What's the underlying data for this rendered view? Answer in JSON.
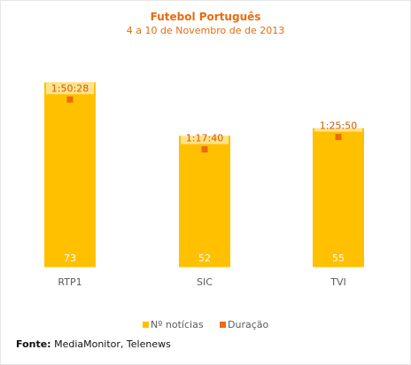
{
  "chart_data": {
    "type": "bar",
    "title": "Futebol Português",
    "subtitle": "4 a 10 de Novembro de de 2013",
    "categories": [
      "RTP1",
      "SIC",
      "TVI"
    ],
    "series": [
      {
        "name": "Nº notícias",
        "values": [
          73,
          52,
          55
        ],
        "labels": [
          "73",
          "52",
          "55"
        ],
        "color": "#ffc000"
      },
      {
        "name": "Duração",
        "values": [
          6628,
          4660,
          5150
        ],
        "labels": [
          "1:50:28",
          "1:17:40",
          "1:25:50"
        ],
        "color": "#ed6a12"
      }
    ],
    "ylim": [
      0,
      80
    ],
    "y2lim": [
      0,
      8000
    ],
    "grid": false,
    "legend": "bottom"
  },
  "source": {
    "label": "Fonte:",
    "text": "MediaMonitor, Telenews"
  }
}
